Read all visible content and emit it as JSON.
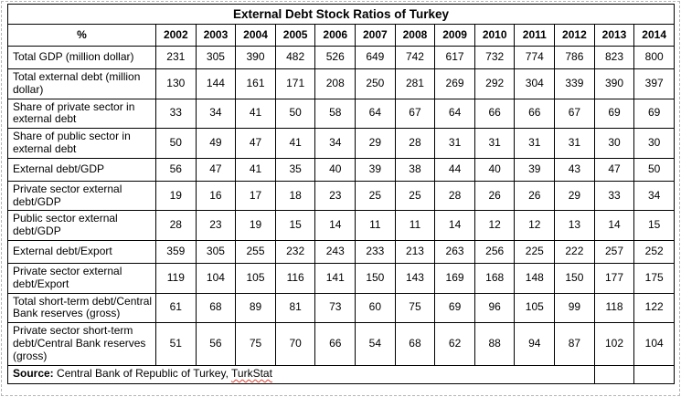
{
  "title": "External Debt Stock Ratios of Turkey",
  "table": {
    "header_label": "%",
    "years": [
      "2002",
      "2003",
      "2004",
      "2005",
      "2006",
      "2007",
      "2008",
      "2009",
      "2010",
      "2011",
      "2012",
      "2013",
      "2014"
    ],
    "rows": [
      {
        "label": "Total GDP (million dollar)",
        "values": [
          231,
          305,
          390,
          482,
          526,
          649,
          742,
          617,
          732,
          774,
          786,
          823,
          800
        ]
      },
      {
        "label": "Total external debt (million dollar)",
        "values": [
          130,
          144,
          161,
          171,
          208,
          250,
          281,
          269,
          292,
          304,
          339,
          390,
          397
        ]
      },
      {
        "label": "Share of private sector in external debt",
        "values": [
          33,
          34,
          41,
          50,
          58,
          64,
          67,
          64,
          66,
          66,
          67,
          69,
          69
        ]
      },
      {
        "label": "Share of public sector in external debt",
        "values": [
          50,
          49,
          47,
          41,
          34,
          29,
          28,
          31,
          31,
          31,
          31,
          30,
          30
        ]
      },
      {
        "label": "External debt/GDP",
        "values": [
          56,
          47,
          41,
          35,
          40,
          39,
          38,
          44,
          40,
          39,
          43,
          47,
          50
        ]
      },
      {
        "label": "Private sector external debt/GDP",
        "values": [
          19,
          16,
          17,
          18,
          23,
          25,
          25,
          28,
          26,
          26,
          29,
          33,
          34
        ]
      },
      {
        "label": "Public sector external debt/GDP",
        "values": [
          28,
          23,
          19,
          15,
          14,
          11,
          11,
          14,
          12,
          12,
          13,
          14,
          15
        ]
      },
      {
        "label": "External debt/Export",
        "values": [
          359,
          305,
          255,
          232,
          243,
          233,
          213,
          263,
          256,
          225,
          222,
          257,
          252
        ]
      },
      {
        "label": "Private sector external debt/Export",
        "values": [
          119,
          104,
          105,
          116,
          141,
          150,
          143,
          169,
          168,
          148,
          150,
          177,
          175
        ]
      },
      {
        "label": "Total short-term debt/Central Bank reserves (gross)",
        "values": [
          61,
          68,
          89,
          81,
          73,
          60,
          75,
          69,
          96,
          105,
          99,
          118,
          122
        ]
      },
      {
        "label": "Private sector short-term debt/Central Bank reserves (gross)",
        "values": [
          51,
          56,
          75,
          70,
          66,
          54,
          68,
          62,
          88,
          94,
          87,
          102,
          104
        ]
      }
    ]
  },
  "source": {
    "label": "Source:",
    "text": "Central Bank of Republic of Turkey, ",
    "highlighted": "TurkStat"
  },
  "colors": {
    "table_border": "#000000",
    "page_frame_dashed": "#b5b5b5",
    "spellcheck_underline": "#e43d30",
    "text": "#000000",
    "background": "#ffffff"
  },
  "chart_data": {
    "type": "table",
    "title": "External Debt Stock Ratios of Turkey",
    "categories": [
      "2002",
      "2003",
      "2004",
      "2005",
      "2006",
      "2007",
      "2008",
      "2009",
      "2010",
      "2011",
      "2012",
      "2013",
      "2014"
    ],
    "series": [
      {
        "name": "Total GDP (million dollar)",
        "values": [
          231,
          305,
          390,
          482,
          526,
          649,
          742,
          617,
          732,
          774,
          786,
          823,
          800
        ]
      },
      {
        "name": "Total external debt (million dollar)",
        "values": [
          130,
          144,
          161,
          171,
          208,
          250,
          281,
          269,
          292,
          304,
          339,
          390,
          397
        ]
      },
      {
        "name": "Share of private sector in external debt",
        "values": [
          33,
          34,
          41,
          50,
          58,
          64,
          67,
          64,
          66,
          66,
          67,
          69,
          69
        ]
      },
      {
        "name": "Share of public sector in external debt",
        "values": [
          50,
          49,
          47,
          41,
          34,
          29,
          28,
          31,
          31,
          31,
          31,
          30,
          30
        ]
      },
      {
        "name": "External debt/GDP",
        "values": [
          56,
          47,
          41,
          35,
          40,
          39,
          38,
          44,
          40,
          39,
          43,
          47,
          50
        ]
      },
      {
        "name": "Private sector external debt/GDP",
        "values": [
          19,
          16,
          17,
          18,
          23,
          25,
          25,
          28,
          26,
          26,
          29,
          33,
          34
        ]
      },
      {
        "name": "Public sector external debt/GDP",
        "values": [
          28,
          23,
          19,
          15,
          14,
          11,
          11,
          14,
          12,
          12,
          13,
          14,
          15
        ]
      },
      {
        "name": "External debt/Export",
        "values": [
          359,
          305,
          255,
          232,
          243,
          233,
          213,
          263,
          256,
          225,
          222,
          257,
          252
        ]
      },
      {
        "name": "Private sector external debt/Export",
        "values": [
          119,
          104,
          105,
          116,
          141,
          150,
          143,
          169,
          168,
          148,
          150,
          177,
          175
        ]
      },
      {
        "name": "Total short-term debt/Central Bank reserves (gross)",
        "values": [
          61,
          68,
          89,
          81,
          73,
          60,
          75,
          69,
          96,
          105,
          99,
          118,
          122
        ]
      },
      {
        "name": "Private sector short-term debt/Central Bank reserves (gross)",
        "values": [
          51,
          56,
          75,
          70,
          66,
          54,
          68,
          62,
          88,
          94,
          87,
          102,
          104
        ]
      }
    ]
  }
}
